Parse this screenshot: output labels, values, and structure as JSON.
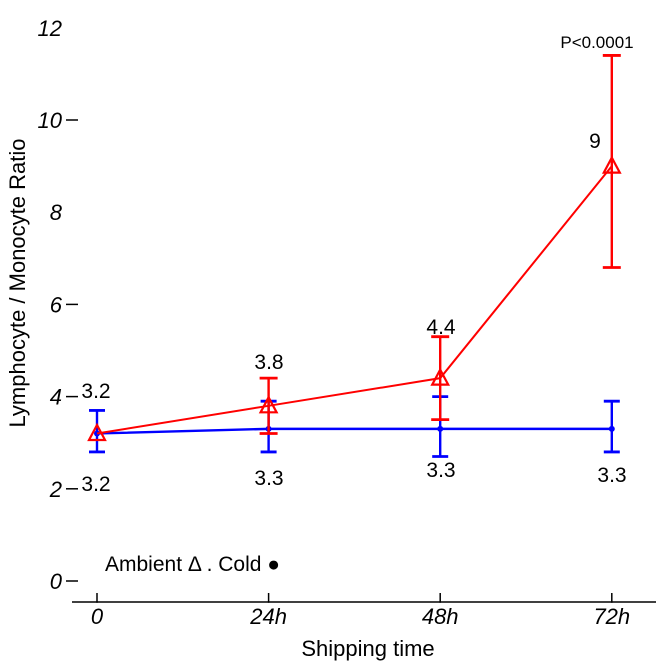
{
  "page": {
    "background": "#ffffff"
  },
  "chart_data": {
    "type": "line",
    "title": "",
    "xlabel": "Shipping time",
    "ylabel": "Lymphocyte / Monocyte Ratio",
    "categories": [
      "0",
      "24h",
      "48h",
      "72h"
    ],
    "ylim": [
      0,
      12
    ],
    "yticks": [
      0,
      2,
      4,
      6,
      8,
      10,
      12
    ],
    "yticks_with_dash": [
      0,
      2,
      4,
      6,
      10
    ],
    "grid": false,
    "legend": {
      "position": "bottom-left",
      "separator": " . ",
      "items": [
        {
          "label": "Ambient",
          "glyph": "Δ"
        },
        {
          "label": "Cold",
          "glyph": "●"
        }
      ]
    },
    "annotation": {
      "text": "P<0.0001",
      "attached_to": "Ambient@72h",
      "placement": "above-top-error-cap"
    },
    "series": [
      {
        "name": "Cold",
        "color": "#0000ff",
        "marker": "filled-circle",
        "line_style": "solid",
        "values": [
          3.2,
          3.3,
          3.3,
          3.3
        ],
        "err_low": [
          2.8,
          2.8,
          2.7,
          2.8
        ],
        "err_high": [
          3.7,
          3.9,
          4.0,
          3.9
        ],
        "point_labels": [
          "3.2",
          "3.3",
          "3.3",
          "3.3"
        ],
        "label_side": "below"
      },
      {
        "name": "Ambient",
        "color": "#ff0000",
        "marker": "open-triangle",
        "line_style": "solid",
        "values": [
          3.2,
          3.8,
          4.4,
          9
        ],
        "err_low": [
          null,
          3.2,
          3.5,
          6.8
        ],
        "err_high": [
          null,
          4.4,
          5.3,
          11.4
        ],
        "point_labels": [
          "3.2",
          "3.8",
          "4.4",
          "9"
        ],
        "label_side": "above"
      }
    ]
  }
}
